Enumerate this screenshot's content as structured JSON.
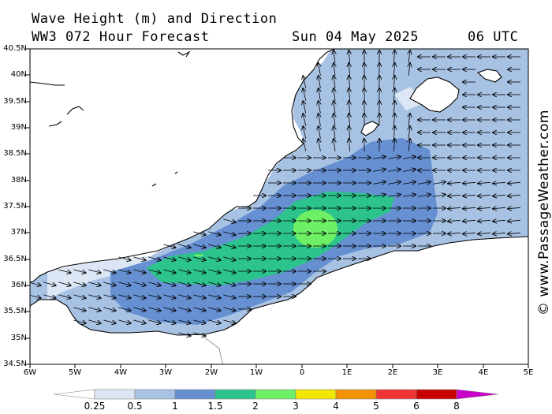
{
  "header": {
    "title": "Wave Height (m) and Direction",
    "model": "WW3 072 Hour Forecast",
    "date": "Sun 04 May 2025",
    "time": "06 UTC"
  },
  "watermark": "© www.PassageWeather.com",
  "map": {
    "lat_labels": [
      "40.5N",
      "40N",
      "39.5N",
      "39N",
      "38.5N",
      "38N",
      "37.5N",
      "37N",
      "36.5N",
      "36N",
      "35.5N",
      "35N",
      "34.5N"
    ],
    "lon_labels": [
      "6W",
      "5W",
      "4W",
      "3W",
      "2W",
      "1W",
      "0",
      "1E",
      "2E",
      "3E",
      "4E",
      "5E"
    ],
    "lat_range": [
      34.5,
      40.5
    ],
    "lon_range": [
      -6,
      5
    ]
  },
  "legend": {
    "values": [
      "0.25",
      "0.5",
      "1",
      "1.5",
      "2",
      "3",
      "4",
      "5",
      "6",
      "8"
    ],
    "colors": [
      "#ffffff",
      "#dce6f4",
      "#a8c2e4",
      "#6690d2",
      "#2cc48c",
      "#6ef066",
      "#f2e600",
      "#f39200",
      "#ee3434",
      "#c80000",
      "#c800c8"
    ]
  }
}
